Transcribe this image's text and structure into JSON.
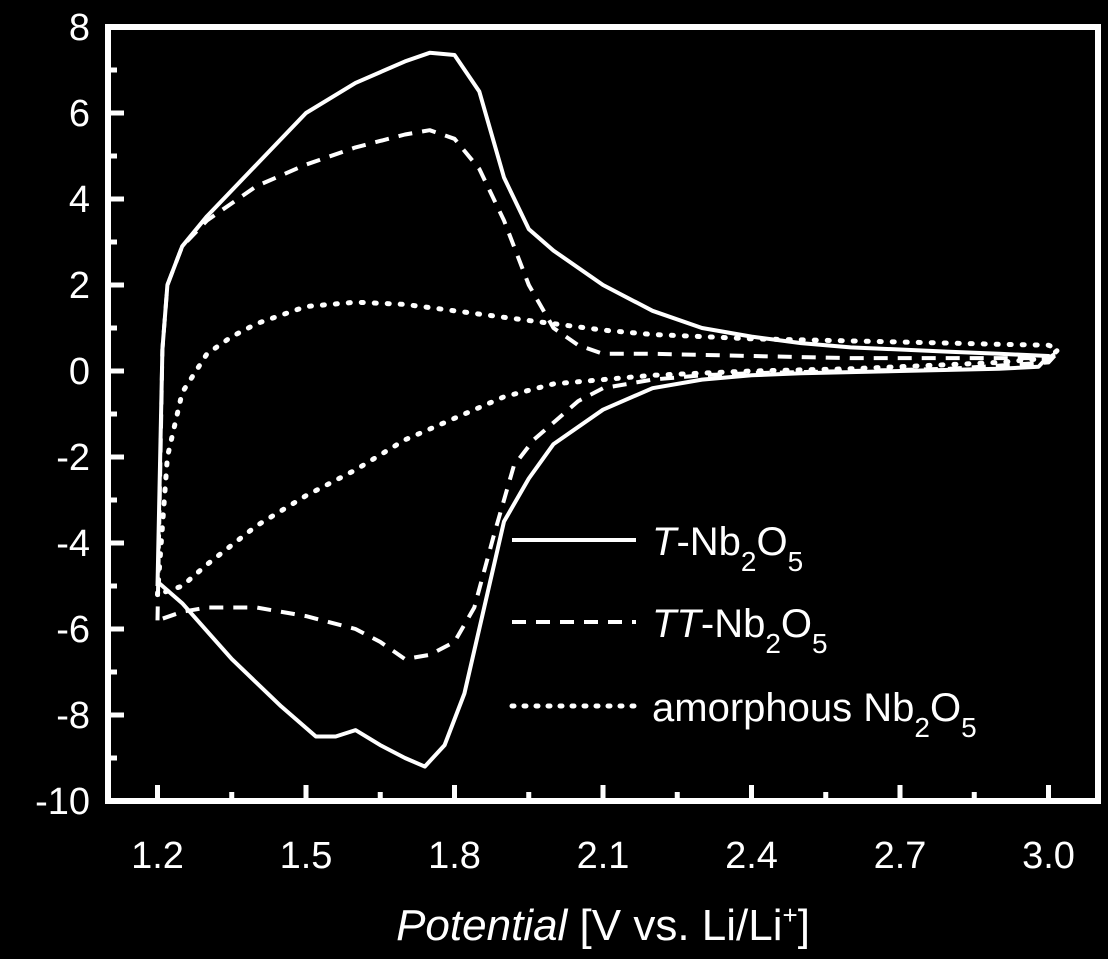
{
  "chart_data": {
    "type": "line",
    "xlabel": {
      "italic": "Potential",
      "rest": " [V vs. Li/Li",
      "sup": "+",
      "end": "]"
    },
    "ylabel": "",
    "xlim": [
      1.1,
      3.1
    ],
    "ylim": [
      -10,
      8
    ],
    "xticks": [
      "1.2",
      "1.5",
      "1.8",
      "2.1",
      "2.4",
      "2.7",
      "3.0"
    ],
    "yticks": [
      "8",
      "6",
      "4",
      "2",
      "0",
      "-2",
      "-4",
      "-6",
      "-8",
      "-10"
    ],
    "grid": false,
    "legend_position": "bottom-right",
    "colors": {
      "background": "#000000",
      "foreground": "#ffffff"
    },
    "series": [
      {
        "name": "T-Nb2O5",
        "legend": {
          "italic": "T",
          "base": "-Nb",
          "sub1": "2",
          "mid": "O",
          "sub2": "5"
        },
        "style": "solid",
        "points": [
          [
            1.2,
            -5.0
          ],
          [
            1.21,
            0.5
          ],
          [
            1.22,
            2.0
          ],
          [
            1.25,
            2.9
          ],
          [
            1.3,
            3.6
          ],
          [
            1.4,
            4.8
          ],
          [
            1.5,
            6.0
          ],
          [
            1.6,
            6.7
          ],
          [
            1.7,
            7.2
          ],
          [
            1.75,
            7.4
          ],
          [
            1.8,
            7.35
          ],
          [
            1.85,
            6.5
          ],
          [
            1.9,
            4.5
          ],
          [
            1.95,
            3.3
          ],
          [
            2.0,
            2.8
          ],
          [
            2.1,
            2.0
          ],
          [
            2.2,
            1.4
          ],
          [
            2.3,
            1.0
          ],
          [
            2.4,
            0.8
          ],
          [
            2.5,
            0.65
          ],
          [
            2.6,
            0.55
          ],
          [
            2.7,
            0.5
          ],
          [
            2.8,
            0.45
          ],
          [
            2.9,
            0.4
          ],
          [
            3.0,
            0.35
          ],
          [
            2.98,
            0.1
          ],
          [
            2.9,
            0.05
          ],
          [
            2.7,
            0.0
          ],
          [
            2.5,
            -0.05
          ],
          [
            2.4,
            -0.1
          ],
          [
            2.3,
            -0.2
          ],
          [
            2.2,
            -0.4
          ],
          [
            2.1,
            -0.9
          ],
          [
            2.0,
            -1.7
          ],
          [
            1.95,
            -2.5
          ],
          [
            1.9,
            -3.5
          ],
          [
            1.86,
            -5.5
          ],
          [
            1.82,
            -7.5
          ],
          [
            1.78,
            -8.7
          ],
          [
            1.74,
            -9.2
          ],
          [
            1.7,
            -9.0
          ],
          [
            1.65,
            -8.7
          ],
          [
            1.6,
            -8.35
          ],
          [
            1.56,
            -8.5
          ],
          [
            1.52,
            -8.5
          ],
          [
            1.45,
            -7.8
          ],
          [
            1.35,
            -6.7
          ],
          [
            1.25,
            -5.4
          ],
          [
            1.2,
            -4.9
          ]
        ]
      },
      {
        "name": "TT-Nb2O5",
        "legend": {
          "italic": "TT",
          "base": "-Nb",
          "sub1": "2",
          "mid": "O",
          "sub2": "5"
        },
        "style": "dashed",
        "points": [
          [
            1.2,
            -5.8
          ],
          [
            1.21,
            0.5
          ],
          [
            1.22,
            2.0
          ],
          [
            1.25,
            2.9
          ],
          [
            1.3,
            3.5
          ],
          [
            1.4,
            4.3
          ],
          [
            1.5,
            4.8
          ],
          [
            1.6,
            5.2
          ],
          [
            1.7,
            5.5
          ],
          [
            1.75,
            5.6
          ],
          [
            1.8,
            5.4
          ],
          [
            1.85,
            4.7
          ],
          [
            1.9,
            3.5
          ],
          [
            1.95,
            2.0
          ],
          [
            2.0,
            1.0
          ],
          [
            2.05,
            0.6
          ],
          [
            2.1,
            0.4
          ],
          [
            2.2,
            0.4
          ],
          [
            2.4,
            0.35
          ],
          [
            2.6,
            0.3
          ],
          [
            2.8,
            0.3
          ],
          [
            3.0,
            0.3
          ],
          [
            3.02,
            0.45
          ],
          [
            3.0,
            0.2
          ],
          [
            2.8,
            0.05
          ],
          [
            2.6,
            0.0
          ],
          [
            2.4,
            -0.05
          ],
          [
            2.3,
            -0.1
          ],
          [
            2.2,
            -0.2
          ],
          [
            2.1,
            -0.4
          ],
          [
            2.05,
            -0.7
          ],
          [
            2.0,
            -1.2
          ],
          [
            1.96,
            -1.6
          ],
          [
            1.92,
            -2.2
          ],
          [
            1.88,
            -3.8
          ],
          [
            1.84,
            -5.5
          ],
          [
            1.8,
            -6.3
          ],
          [
            1.75,
            -6.6
          ],
          [
            1.7,
            -6.7
          ],
          [
            1.65,
            -6.3
          ],
          [
            1.6,
            -6.0
          ],
          [
            1.5,
            -5.7
          ],
          [
            1.4,
            -5.5
          ],
          [
            1.3,
            -5.5
          ],
          [
            1.25,
            -5.6
          ],
          [
            1.2,
            -5.8
          ]
        ]
      },
      {
        "name": "amorphous Nb2O5",
        "legend": {
          "italic": "",
          "base": "amorphous Nb",
          "sub1": "2",
          "mid": "O",
          "sub2": "5"
        },
        "style": "dotted",
        "points": [
          [
            1.2,
            -5.2
          ],
          [
            1.22,
            -2.0
          ],
          [
            1.25,
            -0.5
          ],
          [
            1.3,
            0.4
          ],
          [
            1.35,
            0.8
          ],
          [
            1.4,
            1.1
          ],
          [
            1.5,
            1.5
          ],
          [
            1.6,
            1.6
          ],
          [
            1.7,
            1.55
          ],
          [
            1.8,
            1.4
          ],
          [
            1.9,
            1.25
          ],
          [
            2.0,
            1.1
          ],
          [
            2.1,
            0.95
          ],
          [
            2.2,
            0.85
          ],
          [
            2.3,
            0.8
          ],
          [
            2.4,
            0.75
          ],
          [
            2.6,
            0.7
          ],
          [
            2.8,
            0.65
          ],
          [
            2.9,
            0.62
          ],
          [
            3.0,
            0.6
          ],
          [
            3.02,
            0.5
          ],
          [
            3.0,
            0.3
          ],
          [
            2.9,
            0.2
          ],
          [
            2.8,
            0.15
          ],
          [
            2.6,
            0.05
          ],
          [
            2.4,
            0.0
          ],
          [
            2.2,
            -0.1
          ],
          [
            2.1,
            -0.2
          ],
          [
            2.0,
            -0.3
          ],
          [
            1.9,
            -0.6
          ],
          [
            1.8,
            -1.1
          ],
          [
            1.7,
            -1.6
          ],
          [
            1.6,
            -2.3
          ],
          [
            1.5,
            -2.9
          ],
          [
            1.4,
            -3.6
          ],
          [
            1.3,
            -4.5
          ],
          [
            1.25,
            -5.0
          ],
          [
            1.2,
            -5.2
          ]
        ]
      }
    ]
  }
}
